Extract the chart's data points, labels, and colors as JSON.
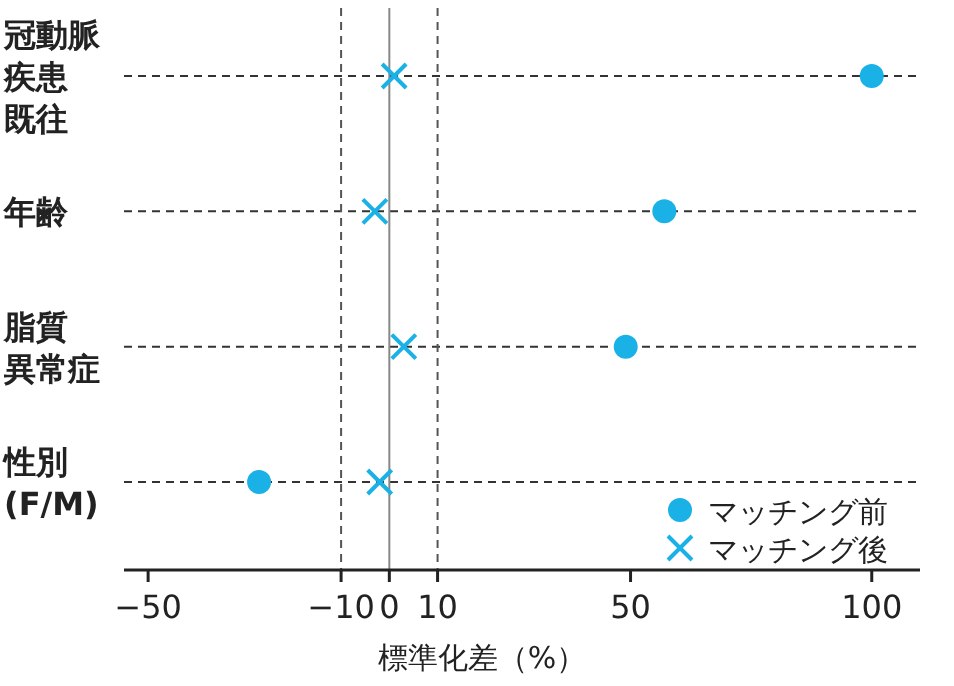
{
  "chart_data": {
    "type": "scatter",
    "orientation": "horizontal",
    "xlabel": "標準化差（%）",
    "categories": [
      "冠動脈疾患既往",
      "年齢",
      "脂質異常症",
      "性別(F/M)"
    ],
    "series": [
      {
        "name": "マッチング前",
        "color": "#1ab1e6",
        "marker": "circle",
        "values": [
          100,
          57,
          49,
          -27
        ]
      },
      {
        "name": "マッチング後",
        "color": "#1ab1e6",
        "marker": "cross",
        "values": [
          1,
          -3,
          3,
          -2
        ]
      }
    ],
    "xlim": [
      -55,
      110
    ],
    "xticks": [
      -50,
      -10,
      0,
      10,
      50,
      100
    ],
    "ref_lines": [
      {
        "axis": "x",
        "value": -10,
        "line_style": "dashed",
        "color": "#555555"
      },
      {
        "axis": "x",
        "value": 0,
        "line_style": "solid",
        "color": "#888888"
      },
      {
        "axis": "x",
        "value": 10,
        "line_style": "dashed",
        "color": "#555555"
      }
    ],
    "grid": "y",
    "legend": "bottom right"
  }
}
